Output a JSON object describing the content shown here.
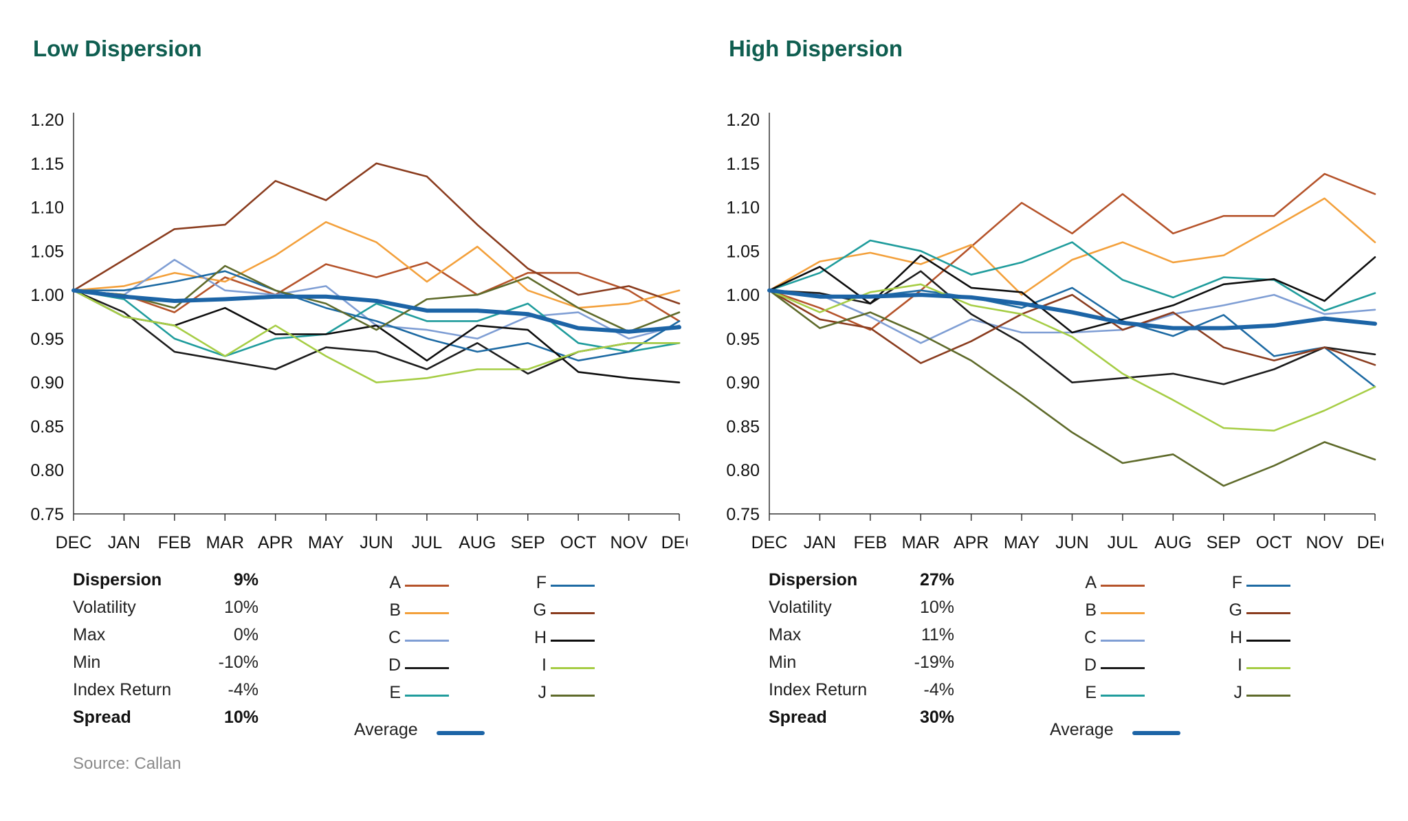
{
  "source": "Source: Callan",
  "months": [
    "DEC",
    "JAN",
    "FEB",
    "MAR",
    "APR",
    "MAY",
    "JUN",
    "JUL",
    "AUG",
    "SEP",
    "OCT",
    "NOV",
    "DEC"
  ],
  "y_ticks": [
    "1.20",
    "1.15",
    "1.10",
    "1.05",
    "1.00",
    "0.95",
    "0.90",
    "0.85",
    "0.80",
    "0.75"
  ],
  "series_colors": {
    "A": "#b5532a",
    "B": "#f3a03b",
    "C": "#7f9ed4",
    "D": "#1c1c1c",
    "E": "#1f9c9c",
    "F": "#1d6aa3",
    "G": "#8a3c1e",
    "H": "#0d0d0d",
    "I": "#a6cd45",
    "J": "#5e6a2a",
    "Average": "#1c64a6"
  },
  "panels": [
    {
      "title": "Low Dispersion",
      "stats": [
        {
          "label": "Dispersion",
          "value": "9%",
          "bold": true
        },
        {
          "label": "Volatility",
          "value": "10%",
          "bold": false
        },
        {
          "label": "Max",
          "value": "0%",
          "bold": false
        },
        {
          "label": "Min",
          "value": "-10%",
          "bold": false
        },
        {
          "label": "Index Return",
          "value": "-4%",
          "bold": false
        },
        {
          "label": "Spread",
          "value": "10%",
          "bold": true
        }
      ],
      "legend": [
        "A",
        "B",
        "C",
        "D",
        "E",
        "F",
        "G",
        "H",
        "I",
        "J"
      ],
      "average_label": "Average"
    },
    {
      "title": "High Dispersion",
      "stats": [
        {
          "label": "Dispersion",
          "value": "27%",
          "bold": true
        },
        {
          "label": "Volatility",
          "value": "10%",
          "bold": false
        },
        {
          "label": "Max",
          "value": "11%",
          "bold": false
        },
        {
          "label": "Min",
          "value": "-19%",
          "bold": false
        },
        {
          "label": "Index Return",
          "value": "-4%",
          "bold": false
        },
        {
          "label": "Spread",
          "value": "30%",
          "bold": true
        }
      ],
      "legend": [
        "A",
        "B",
        "C",
        "D",
        "E",
        "F",
        "G",
        "H",
        "I",
        "J"
      ],
      "average_label": "Average"
    }
  ],
  "chart_data": [
    {
      "type": "line",
      "title": "Low Dispersion",
      "x": [
        "DEC",
        "JAN",
        "FEB",
        "MAR",
        "APR",
        "MAY",
        "JUN",
        "JUL",
        "AUG",
        "SEP",
        "OCT",
        "NOV",
        "DEC"
      ],
      "ylim": [
        0.75,
        1.2
      ],
      "y_ticks": [
        1.2,
        1.15,
        1.1,
        1.05,
        1.0,
        0.95,
        0.9,
        0.85,
        0.8,
        0.75
      ],
      "grid": false,
      "legend_position": "bottom",
      "series": [
        {
          "name": "A",
          "values": [
            1.005,
            1.0,
            0.98,
            1.02,
            1.0,
            1.035,
            1.02,
            1.037,
            1.0,
            1.025,
            1.025,
            1.005,
            0.97
          ]
        },
        {
          "name": "B",
          "values": [
            1.005,
            1.01,
            1.025,
            1.015,
            1.045,
            1.083,
            1.06,
            1.015,
            1.055,
            1.005,
            0.985,
            0.99,
            1.005
          ]
        },
        {
          "name": "C",
          "values": [
            1.005,
            1.0,
            1.04,
            1.005,
            1.0,
            1.01,
            0.965,
            0.96,
            0.95,
            0.975,
            0.98,
            0.95,
            0.965
          ]
        },
        {
          "name": "D",
          "values": [
            1.005,
            0.98,
            0.935,
            0.925,
            0.915,
            0.94,
            0.935,
            0.915,
            0.945,
            0.91,
            0.935,
            0.945,
            0.945
          ]
        },
        {
          "name": "E",
          "values": [
            1.005,
            0.995,
            0.95,
            0.93,
            0.95,
            0.955,
            0.99,
            0.97,
            0.97,
            0.99,
            0.945,
            0.935,
            0.945
          ]
        },
        {
          "name": "F",
          "values": [
            1.005,
            1.005,
            1.015,
            1.027,
            1.005,
            0.985,
            0.97,
            0.95,
            0.935,
            0.945,
            0.925,
            0.935,
            0.97
          ]
        },
        {
          "name": "G",
          "values": [
            1.005,
            1.04,
            1.075,
            1.08,
            1.13,
            1.108,
            1.15,
            1.135,
            1.08,
            1.03,
            1.0,
            1.01,
            0.99
          ]
        },
        {
          "name": "H",
          "values": [
            1.005,
            0.975,
            0.965,
            0.985,
            0.955,
            0.955,
            0.965,
            0.925,
            0.965,
            0.96,
            0.912,
            0.905,
            0.9
          ]
        },
        {
          "name": "I",
          "values": [
            1.005,
            0.975,
            0.965,
            0.93,
            0.965,
            0.93,
            0.9,
            0.905,
            0.915,
            0.915,
            0.935,
            0.945,
            0.945
          ]
        },
        {
          "name": "J",
          "values": [
            1.005,
            1.0,
            0.985,
            1.033,
            1.005,
            0.99,
            0.96,
            0.995,
            1.0,
            1.02,
            0.985,
            0.958,
            0.98
          ]
        },
        {
          "name": "Average",
          "values": [
            1.005,
            0.998,
            0.993,
            0.995,
            0.998,
            0.998,
            0.993,
            0.982,
            0.982,
            0.978,
            0.962,
            0.958,
            0.963
          ]
        }
      ]
    },
    {
      "type": "line",
      "title": "High Dispersion",
      "x": [
        "DEC",
        "JAN",
        "FEB",
        "MAR",
        "APR",
        "MAY",
        "JUN",
        "JUL",
        "AUG",
        "SEP",
        "OCT",
        "NOV",
        "DEC"
      ],
      "ylim": [
        0.75,
        1.2
      ],
      "y_ticks": [
        1.2,
        1.15,
        1.1,
        1.05,
        1.0,
        0.95,
        0.9,
        0.85,
        0.8,
        0.75
      ],
      "grid": false,
      "legend_position": "bottom",
      "series": [
        {
          "name": "A",
          "values": [
            1.005,
            0.985,
            0.96,
            1.005,
            1.055,
            1.105,
            1.07,
            1.115,
            1.07,
            1.09,
            1.09,
            1.138,
            1.115
          ]
        },
        {
          "name": "B",
          "values": [
            1.005,
            1.038,
            1.048,
            1.035,
            1.057,
            1.0,
            1.04,
            1.06,
            1.037,
            1.045,
            1.077,
            1.11,
            1.06
          ]
        },
        {
          "name": "C",
          "values": [
            1.005,
            1.0,
            0.975,
            0.945,
            0.972,
            0.957,
            0.957,
            0.96,
            0.978,
            0.988,
            1.0,
            0.978,
            0.983
          ]
        },
        {
          "name": "D",
          "values": [
            1.005,
            1.002,
            0.99,
            1.027,
            0.978,
            0.945,
            0.9,
            0.905,
            0.91,
            0.898,
            0.915,
            0.94,
            0.932
          ]
        },
        {
          "name": "E",
          "values": [
            1.005,
            1.025,
            1.062,
            1.05,
            1.023,
            1.037,
            1.06,
            1.017,
            0.997,
            1.02,
            1.017,
            0.982,
            1.002
          ]
        },
        {
          "name": "F",
          "values": [
            1.005,
            0.998,
            0.998,
            1.005,
            0.997,
            0.985,
            1.008,
            0.97,
            0.953,
            0.977,
            0.93,
            0.94,
            0.895
          ]
        },
        {
          "name": "G",
          "values": [
            1.005,
            0.972,
            0.962,
            0.922,
            0.947,
            0.978,
            1.0,
            0.96,
            0.98,
            0.94,
            0.925,
            0.94,
            0.92
          ]
        },
        {
          "name": "H",
          "values": [
            1.005,
            1.032,
            0.99,
            1.045,
            1.008,
            1.003,
            0.957,
            0.972,
            0.988,
            1.012,
            1.018,
            0.993,
            1.043
          ]
        },
        {
          "name": "I",
          "values": [
            1.005,
            0.98,
            1.003,
            1.012,
            0.988,
            0.978,
            0.952,
            0.91,
            0.88,
            0.848,
            0.845,
            0.868,
            0.895
          ]
        },
        {
          "name": "J",
          "values": [
            1.005,
            0.962,
            0.98,
            0.955,
            0.925,
            0.885,
            0.843,
            0.808,
            0.818,
            0.782,
            0.805,
            0.832,
            0.812
          ]
        },
        {
          "name": "Average",
          "values": [
            1.005,
            0.998,
            0.998,
            1.0,
            0.997,
            0.99,
            0.98,
            0.968,
            0.962,
            0.962,
            0.965,
            0.973,
            0.967
          ]
        }
      ]
    }
  ]
}
